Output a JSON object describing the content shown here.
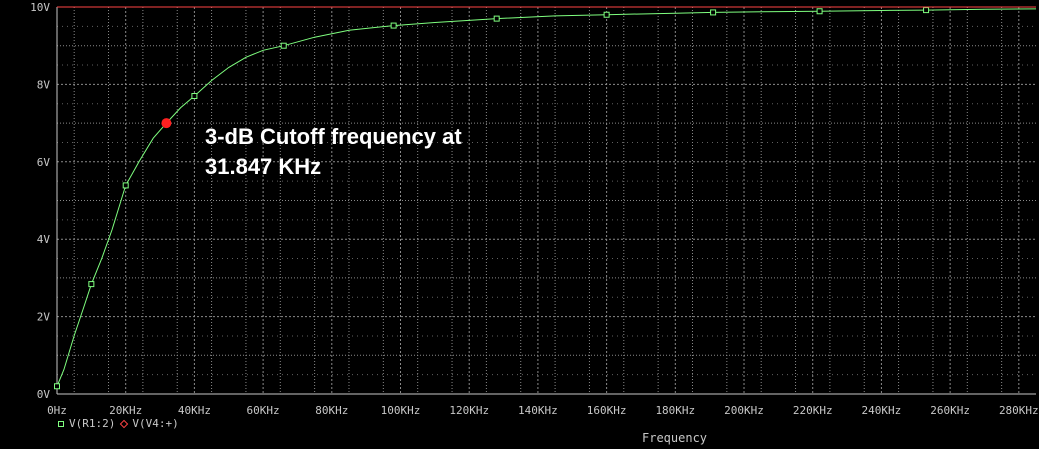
{
  "chart_data": {
    "type": "line",
    "xlabel": "Frequency",
    "xlim": [
      0,
      285000
    ],
    "ylim": [
      0,
      10
    ],
    "x_ticks": [
      0,
      20000,
      40000,
      60000,
      80000,
      100000,
      120000,
      140000,
      160000,
      180000,
      200000,
      220000,
      240000,
      260000,
      280000
    ],
    "x_tick_labels": [
      "0Hz",
      "20KHz",
      "40KHz",
      "60KHz",
      "80KHz",
      "100KHz",
      "120KHz",
      "140KHz",
      "160KHz",
      "180KHz",
      "200KHz",
      "220KHz",
      "240KHz",
      "260KHz",
      "280KHz"
    ],
    "y_ticks": [
      0,
      2,
      4,
      6,
      8,
      10
    ],
    "y_tick_labels": [
      "0V",
      "2V",
      "4V",
      "6V",
      "8V",
      "10V"
    ],
    "grid": true,
    "series": [
      {
        "name": "V(R1:2)",
        "color": "#7fff7f",
        "marker": "square",
        "x": [
          0,
          2000,
          5000,
          8000,
          10000,
          13000,
          16000,
          20000,
          24000,
          28000,
          31847,
          36000,
          40000,
          45000,
          50000,
          55000,
          60000,
          66000,
          75000,
          85000,
          98000,
          110000,
          128000,
          145000,
          160000,
          180000,
          191000,
          210000,
          222000,
          240000,
          253000,
          270000,
          285000
        ],
        "values": [
          0.2,
          0.63,
          1.51,
          2.3,
          2.84,
          3.5,
          4.24,
          5.39,
          6.02,
          6.61,
          7.0,
          7.4,
          7.7,
          8.1,
          8.44,
          8.7,
          8.88,
          9.0,
          9.22,
          9.4,
          9.52,
          9.6,
          9.7,
          9.77,
          9.8,
          9.84,
          9.86,
          9.88,
          9.89,
          9.91,
          9.92,
          9.94,
          9.95
        ],
        "markers_x": [
          0,
          10000,
          20000,
          40000,
          66000,
          98000,
          128000,
          160000,
          191000,
          222000,
          253000
        ],
        "markers_y": [
          0.2,
          2.84,
          5.39,
          7.7,
          9.0,
          9.52,
          9.7,
          9.8,
          9.86,
          9.89,
          9.92
        ]
      },
      {
        "name": "V(V4:+)",
        "color": "#ff4444",
        "marker": "diamond",
        "x": [
          0,
          285000
        ],
        "values": [
          10,
          10
        ]
      }
    ],
    "highlight_point": {
      "x": 31847,
      "y": 7.0,
      "color": "#ff2020"
    },
    "annotation": [
      "3-dB Cutoff frequency at",
      "31.847 KHz"
    ]
  },
  "colors": {
    "background": "#000000",
    "grid": "#8a8a8a",
    "axis": "#c8c8c8"
  }
}
